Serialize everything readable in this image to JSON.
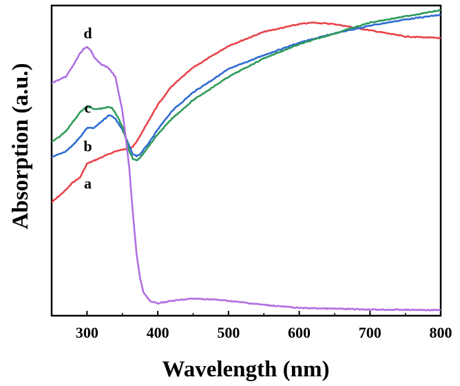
{
  "chart_data": {
    "type": "line",
    "title": "",
    "xlabel": "Wavelength (nm)",
    "ylabel": "Absorption (a.u.)",
    "xlim": [
      250,
      800
    ],
    "ylim": [
      0,
      1
    ],
    "xticks": [
      "300",
      "400",
      "500",
      "600",
      "700",
      "800"
    ],
    "yticks_shown": false,
    "series": [
      {
        "name": "a",
        "color": "#e8444a",
        "x": [
          250,
          260,
          270,
          280,
          290,
          300,
          310,
          320,
          330,
          340,
          350,
          360,
          365,
          370,
          375,
          380,
          390,
          400,
          420,
          450,
          500,
          550,
          600,
          620,
          650,
          700,
          750,
          800
        ],
        "y": [
          0.365,
          0.385,
          0.405,
          0.43,
          0.445,
          0.49,
          0.5,
          0.51,
          0.52,
          0.53,
          0.535,
          0.54,
          0.545,
          0.56,
          0.58,
          0.6,
          0.64,
          0.68,
          0.74,
          0.8,
          0.87,
          0.915,
          0.94,
          0.945,
          0.94,
          0.92,
          0.9,
          0.895
        ]
      },
      {
        "name": "b",
        "color": "#2d6bd1",
        "x": [
          250,
          260,
          270,
          280,
          290,
          300,
          310,
          320,
          330,
          335,
          340,
          350,
          360,
          365,
          370,
          375,
          380,
          390,
          400,
          420,
          450,
          500,
          550,
          600,
          650,
          700,
          750,
          800
        ],
        "y": [
          0.51,
          0.52,
          0.53,
          0.55,
          0.575,
          0.605,
          0.605,
          0.625,
          0.645,
          0.645,
          0.635,
          0.6,
          0.545,
          0.52,
          0.515,
          0.52,
          0.535,
          0.565,
          0.6,
          0.66,
          0.72,
          0.795,
          0.84,
          0.88,
          0.91,
          0.935,
          0.955,
          0.97
        ]
      },
      {
        "name": "c",
        "color": "#2e9a5a",
        "x": [
          250,
          260,
          270,
          280,
          290,
          300,
          305,
          310,
          320,
          330,
          335,
          340,
          350,
          360,
          365,
          370,
          375,
          380,
          390,
          400,
          420,
          450,
          500,
          550,
          600,
          650,
          700,
          750,
          800
        ],
        "y": [
          0.56,
          0.575,
          0.595,
          0.625,
          0.655,
          0.675,
          0.672,
          0.665,
          0.668,
          0.672,
          0.67,
          0.655,
          0.61,
          0.53,
          0.505,
          0.5,
          0.51,
          0.525,
          0.555,
          0.585,
          0.635,
          0.695,
          0.77,
          0.83,
          0.875,
          0.91,
          0.945,
          0.965,
          0.985
        ]
      },
      {
        "name": "d",
        "color": "#b06ee0",
        "x": [
          250,
          260,
          270,
          280,
          290,
          295,
          300,
          305,
          310,
          320,
          330,
          340,
          350,
          355,
          360,
          363,
          366,
          370,
          375,
          380,
          390,
          400,
          420,
          450,
          480,
          500,
          550,
          600,
          700,
          800
        ],
        "y": [
          0.75,
          0.76,
          0.77,
          0.805,
          0.845,
          0.86,
          0.865,
          0.855,
          0.835,
          0.81,
          0.8,
          0.77,
          0.66,
          0.57,
          0.47,
          0.38,
          0.3,
          0.2,
          0.12,
          0.075,
          0.045,
          0.04,
          0.048,
          0.055,
          0.052,
          0.048,
          0.035,
          0.025,
          0.02,
          0.018
        ]
      }
    ],
    "annotations": [
      {
        "text": "a",
        "x": 306,
        "y": 0.41
      },
      {
        "text": "b",
        "x": 306,
        "y": 0.53
      },
      {
        "text": "c",
        "x": 306,
        "y": 0.655
      },
      {
        "text": "d",
        "x": 306,
        "y": 0.895
      }
    ]
  }
}
